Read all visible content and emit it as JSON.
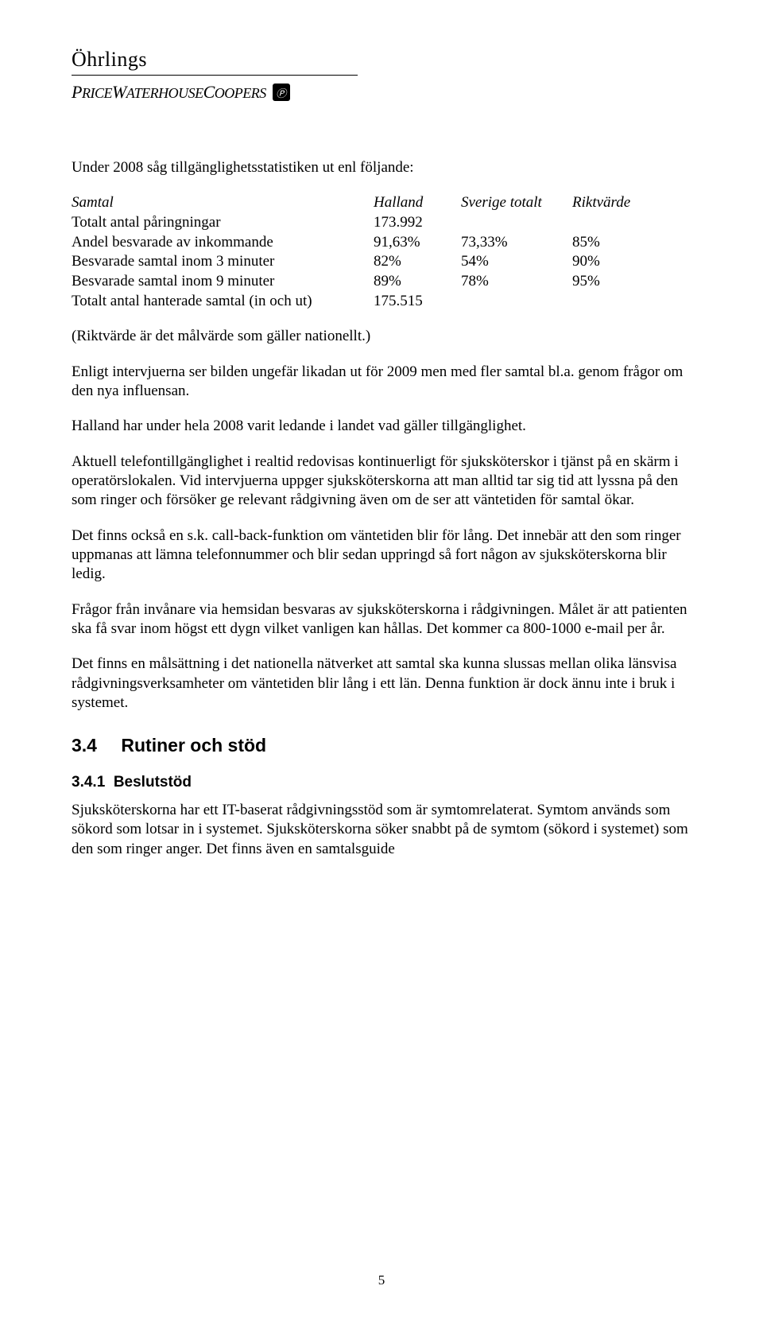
{
  "logo": {
    "line1": "Öhrlings",
    "line2_html_text": "PRICEWATERHOUSECOOPERS",
    "badge": "pwc"
  },
  "intro": "Under 2008 såg tillgänglighetsstatistiken ut enl följande:",
  "table": {
    "headers": {
      "c1": "Samtal",
      "c2": "Halland",
      "c3": "Sverige totalt",
      "c4": "Riktvärde"
    },
    "rows": [
      {
        "c1": "Totalt antal påringningar",
        "c2": "173.992",
        "c3": "",
        "c4": ""
      },
      {
        "c1": "Andel besvarade av inkommande",
        "c2": "91,63%",
        "c3": "73,33%",
        "c4": "85%"
      },
      {
        "c1": "Besvarade samtal inom 3 minuter",
        "c2": "82%",
        "c3": "54%",
        "c4": "90%"
      },
      {
        "c1": "Besvarade samtal inom 9 minuter",
        "c2": "89%",
        "c3": "78%",
        "c4": "95%"
      },
      {
        "c1": "Totalt antal hanterade samtal (in och ut)",
        "c2": "175.515",
        "c3": "",
        "c4": ""
      }
    ]
  },
  "paragraphs": {
    "p1": "(Riktvärde är det målvärde som gäller nationellt.)",
    "p2": "Enligt intervjuerna ser bilden ungefär likadan ut för 2009 men med fler samtal bl.a. genom frågor om den nya influensan.",
    "p3": "Halland har under hela 2008 varit ledande i landet vad gäller tillgänglighet.",
    "p4": "Aktuell telefontillgänglighet i realtid redovisas kontinuerligt för sjuksköterskor i tjänst på en skärm i operatörslokalen. Vid intervjuerna uppger sjuksköterskorna att man alltid tar sig tid att lyssna på den som ringer och försöker ge relevant rådgivning även om de ser att väntetiden för samtal ökar.",
    "p5": "Det finns också en s.k. call-back-funktion om väntetiden blir för lång. Det innebär att den som ringer uppmanas att lämna telefonnummer och blir sedan uppringd så fort någon av sjuksköterskorna blir ledig.",
    "p6": "Frågor från invånare via hemsidan besvaras av sjuksköterskorna i rådgivningen. Målet är att patienten ska få svar inom högst ett dygn vilket vanligen kan hållas. Det kommer ca 800-1000 e-mail per år.",
    "p7": "Det finns en målsättning i det nationella nätverket att samtal ska kunna slussas mellan olika länsvisa rådgivningsverksamheter om väntetiden blir lång i ett län. Denna funktion är dock ännu inte i bruk i systemet."
  },
  "section": {
    "num": "3.4",
    "title": "Rutiner och stöd"
  },
  "subsection": {
    "num": "3.4.1",
    "title": "Beslutstöd",
    "body": "Sjuksköterskorna har ett IT-baserat rådgivningsstöd som är symtomrelaterat. Symtom används som sökord som lotsar in i systemet. Sjuksköterskorna söker snabbt på de symtom (sökord i systemet) som den som ringer anger. Det finns även en samtalsguide"
  },
  "page_number": "5"
}
